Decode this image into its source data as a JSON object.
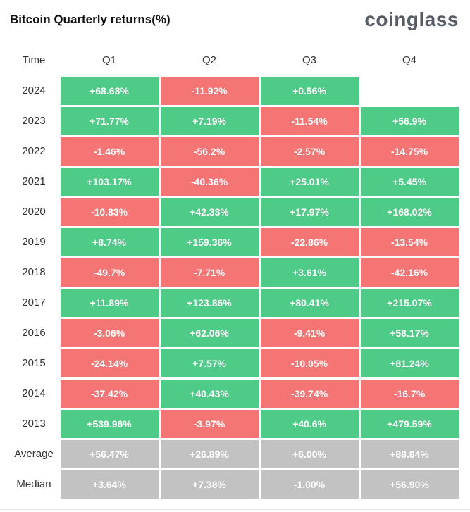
{
  "title": "Bitcoin Quarterly returns(%)",
  "brand": "coinglass",
  "colors": {
    "positive": "#4ecb87",
    "negative": "#f57474",
    "summary": "#c2c2c2"
  },
  "chart_data": {
    "type": "table",
    "title": "Bitcoin Quarterly returns(%)",
    "row_header": "Time",
    "columns": [
      "Q1",
      "Q2",
      "Q3",
      "Q4"
    ],
    "rows": [
      {
        "label": "2024",
        "values": [
          "+68.68%",
          "-11.92%",
          "+0.56%",
          ""
        ]
      },
      {
        "label": "2023",
        "values": [
          "+71.77%",
          "+7.19%",
          "-11.54%",
          "+56.9%"
        ]
      },
      {
        "label": "2022",
        "values": [
          "-1.46%",
          "-56.2%",
          "-2.57%",
          "-14.75%"
        ]
      },
      {
        "label": "2021",
        "values": [
          "+103.17%",
          "-40.36%",
          "+25.01%",
          "+5.45%"
        ]
      },
      {
        "label": "2020",
        "values": [
          "-10.83%",
          "+42.33%",
          "+17.97%",
          "+168.02%"
        ]
      },
      {
        "label": "2019",
        "values": [
          "+8.74%",
          "+159.36%",
          "-22.86%",
          "-13.54%"
        ]
      },
      {
        "label": "2018",
        "values": [
          "-49.7%",
          "-7.71%",
          "+3.61%",
          "-42.16%"
        ]
      },
      {
        "label": "2017",
        "values": [
          "+11.89%",
          "+123.86%",
          "+80.41%",
          "+215.07%"
        ]
      },
      {
        "label": "2016",
        "values": [
          "-3.06%",
          "+62.06%",
          "-9.41%",
          "+58.17%"
        ]
      },
      {
        "label": "2015",
        "values": [
          "-24.14%",
          "+7.57%",
          "-10.05%",
          "+81.24%"
        ]
      },
      {
        "label": "2014",
        "values": [
          "-37.42%",
          "+40.43%",
          "-39.74%",
          "-16.7%"
        ]
      },
      {
        "label": "2013",
        "values": [
          "+539.96%",
          "-3.97%",
          "+40.6%",
          "+479.59%"
        ]
      }
    ],
    "summary_rows": [
      {
        "label": "Average",
        "values": [
          "+56.47%",
          "+26.89%",
          "+6.00%",
          "+88.84%"
        ]
      },
      {
        "label": "Median",
        "values": [
          "+3.64%",
          "+7.38%",
          "-1.00%",
          "+56.90%"
        ]
      }
    ]
  }
}
